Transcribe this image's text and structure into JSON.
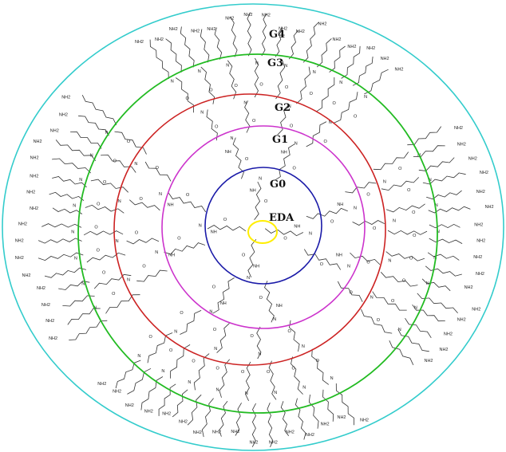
{
  "labels": {
    "core": "EDA",
    "g0": "G0",
    "g1": "G1",
    "g2": "G2",
    "g3": "G3",
    "g4": "G4"
  },
  "atom_labels": {
    "nh2": "NH2",
    "nh": "NH",
    "n": "N",
    "o": "O",
    "h": "H"
  },
  "colors": {
    "core": "#ffee00",
    "g0": "#1a1aa8",
    "g1": "#cc33cc",
    "g2": "#cc2222",
    "g3": "#22bb22",
    "g4": "#33cccc",
    "bond": "#333333"
  }
}
